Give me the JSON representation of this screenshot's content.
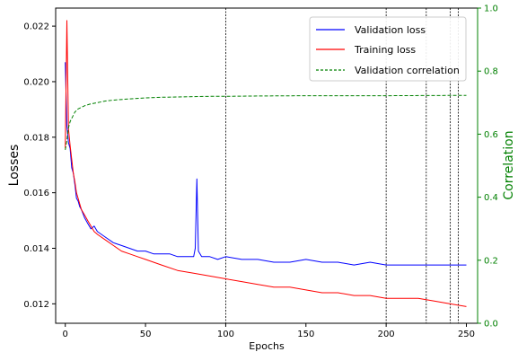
{
  "chart_data": {
    "type": "line",
    "title": "",
    "xlabel": "Epochs",
    "ylabel_left": "Losses",
    "ylabel_right": "Correlation",
    "xlim": [
      -6,
      257
    ],
    "ylim_left": [
      0.0113,
      0.02265
    ],
    "ylim_right": [
      0.0,
      1.0
    ],
    "x_ticks": [
      0,
      50,
      100,
      150,
      200,
      250
    ],
    "y_ticks_left": [
      0.012,
      0.014,
      0.016,
      0.018,
      0.02,
      0.022
    ],
    "y_ticks_right": [
      0.0,
      0.2,
      0.4,
      0.6,
      0.8,
      1.0
    ],
    "grid": false,
    "legend_position": "top-right",
    "vertical_lines_x": [
      100,
      200,
      225,
      240,
      245
    ],
    "series": [
      {
        "name": "Validation loss",
        "axis": "left",
        "color": "#0000ff",
        "style": "solid",
        "x": [
          0,
          1,
          2,
          3,
          4,
          5,
          6,
          7,
          8,
          9,
          10,
          12,
          14,
          16,
          18,
          20,
          25,
          30,
          35,
          40,
          45,
          50,
          55,
          60,
          65,
          70,
          75,
          80,
          81,
          82,
          83,
          85,
          90,
          95,
          100,
          110,
          120,
          130,
          140,
          150,
          160,
          170,
          180,
          190,
          200,
          210,
          220,
          230,
          240,
          245,
          250
        ],
        "y": [
          0.0207,
          0.0184,
          0.0178,
          0.0176,
          0.0169,
          0.0167,
          0.0163,
          0.0158,
          0.0157,
          0.0155,
          0.0154,
          0.0151,
          0.0149,
          0.0147,
          0.0148,
          0.0146,
          0.0144,
          0.0142,
          0.0141,
          0.014,
          0.0139,
          0.0139,
          0.0138,
          0.0138,
          0.0138,
          0.0137,
          0.0137,
          0.0137,
          0.014,
          0.0165,
          0.0139,
          0.0137,
          0.0137,
          0.0136,
          0.0137,
          0.0136,
          0.0136,
          0.0135,
          0.0135,
          0.0136,
          0.0135,
          0.0135,
          0.0134,
          0.0135,
          0.0134,
          0.0134,
          0.0134,
          0.0134,
          0.0134,
          0.0134,
          0.0134
        ]
      },
      {
        "name": "Training loss",
        "axis": "left",
        "color": "#ff0000",
        "style": "solid",
        "x": [
          0,
          1,
          2,
          3,
          4,
          5,
          6,
          7,
          8,
          9,
          10,
          12,
          14,
          16,
          18,
          20,
          25,
          30,
          35,
          40,
          45,
          50,
          55,
          60,
          70,
          80,
          90,
          100,
          110,
          120,
          130,
          140,
          150,
          160,
          170,
          180,
          190,
          200,
          210,
          220,
          230,
          240,
          250
        ],
        "y": [
          0.0176,
          0.0222,
          0.0183,
          0.0177,
          0.0172,
          0.0167,
          0.0164,
          0.016,
          0.0158,
          0.0156,
          0.0154,
          0.0152,
          0.015,
          0.0148,
          0.0146,
          0.0145,
          0.0143,
          0.0141,
          0.0139,
          0.0138,
          0.0137,
          0.0136,
          0.0135,
          0.0134,
          0.0132,
          0.0131,
          0.013,
          0.0129,
          0.0128,
          0.0127,
          0.0126,
          0.0126,
          0.0125,
          0.0124,
          0.0124,
          0.0123,
          0.0123,
          0.0122,
          0.0122,
          0.0122,
          0.0121,
          0.012,
          0.0119
        ]
      },
      {
        "name": "Validation correlation",
        "axis": "right",
        "color": "#008000",
        "style": "dashed",
        "x": [
          0,
          1,
          2,
          3,
          4,
          5,
          6,
          7,
          8,
          10,
          12,
          15,
          20,
          25,
          30,
          40,
          50,
          60,
          70,
          80,
          90,
          100,
          120,
          150,
          200,
          250
        ],
        "y": [
          0.55,
          0.58,
          0.62,
          0.64,
          0.65,
          0.66,
          0.67,
          0.675,
          0.68,
          0.685,
          0.69,
          0.695,
          0.7,
          0.705,
          0.708,
          0.712,
          0.715,
          0.717,
          0.718,
          0.719,
          0.72,
          0.72,
          0.721,
          0.722,
          0.722,
          0.723
        ]
      }
    ]
  }
}
